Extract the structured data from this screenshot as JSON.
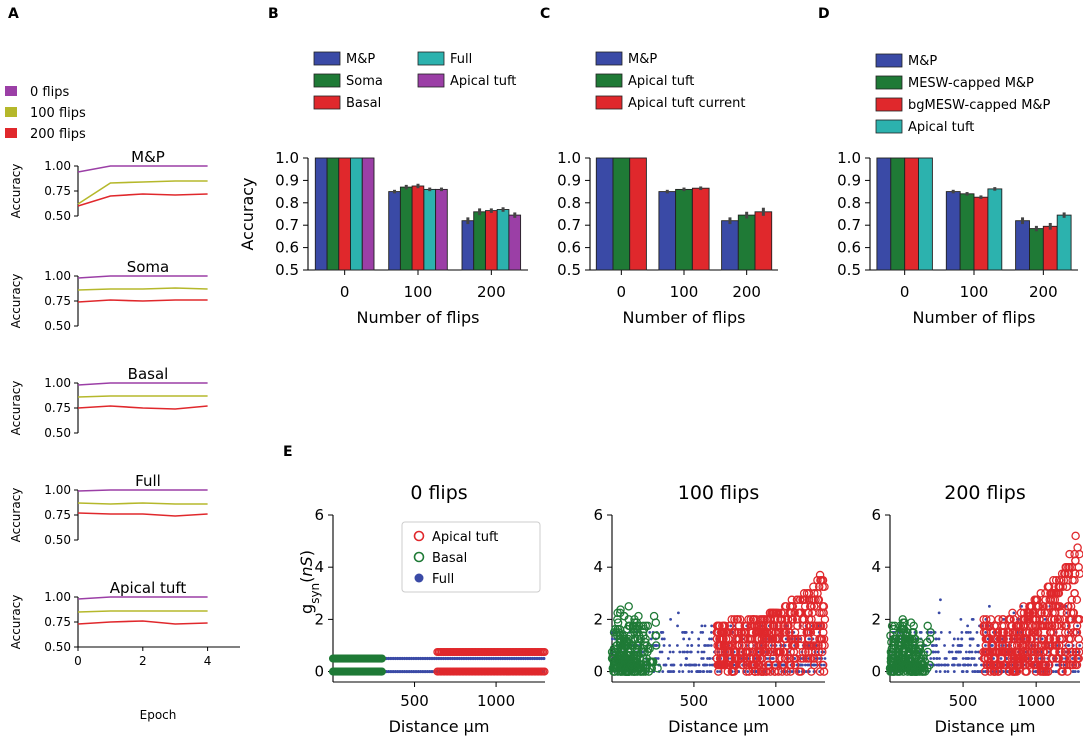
{
  "panel_labels": [
    "A",
    "B",
    "C",
    "D",
    "E"
  ],
  "colors": {
    "mp": "#3a4aa6",
    "soma": "#1f7a36",
    "basal": "#e0282c",
    "full": "#2cb2ae",
    "apical": "#9b3fa6",
    "flips0": "#9b3fa6",
    "flips100": "#b5b82b",
    "flips200": "#e0282c"
  },
  "chart_data": [
    {
      "id": "A",
      "type": "line",
      "legend": [
        "0 flips",
        "100 flips",
        "200 flips"
      ],
      "xlabel": "Epoch",
      "ylabel": "Accuracy",
      "xticks": [
        0,
        2,
        4
      ],
      "yticks": [
        "0.50",
        "0.75",
        "1.00"
      ],
      "xlim": [
        0,
        5
      ],
      "ylim": [
        0.5,
        1.0
      ],
      "x": [
        0,
        1,
        2,
        3,
        4
      ],
      "subplots": [
        {
          "title": "M&P",
          "series": [
            {
              "name": "0 flips",
              "values": [
                0.94,
                1.0,
                1.0,
                1.0,
                1.0
              ]
            },
            {
              "name": "100 flips",
              "values": [
                0.62,
                0.83,
                0.84,
                0.85,
                0.85
              ]
            },
            {
              "name": "200 flips",
              "values": [
                0.6,
                0.7,
                0.72,
                0.71,
                0.72
              ]
            }
          ]
        },
        {
          "title": "Soma",
          "series": [
            {
              "name": "0 flips",
              "values": [
                0.98,
                1.0,
                1.0,
                1.0,
                1.0
              ]
            },
            {
              "name": "100 flips",
              "values": [
                0.86,
                0.87,
                0.87,
                0.88,
                0.87
              ]
            },
            {
              "name": "200 flips",
              "values": [
                0.74,
                0.76,
                0.75,
                0.76,
                0.76
              ]
            }
          ]
        },
        {
          "title": "Basal",
          "series": [
            {
              "name": "0 flips",
              "values": [
                0.98,
                1.0,
                1.0,
                1.0,
                1.0
              ]
            },
            {
              "name": "100 flips",
              "values": [
                0.86,
                0.87,
                0.87,
                0.87,
                0.87
              ]
            },
            {
              "name": "200 flips",
              "values": [
                0.75,
                0.77,
                0.75,
                0.74,
                0.77
              ]
            }
          ]
        },
        {
          "title": "Full",
          "series": [
            {
              "name": "0 flips",
              "values": [
                0.99,
                1.0,
                1.0,
                1.0,
                1.0
              ]
            },
            {
              "name": "100 flips",
              "values": [
                0.87,
                0.86,
                0.87,
                0.86,
                0.86
              ]
            },
            {
              "name": "200 flips",
              "values": [
                0.77,
                0.76,
                0.76,
                0.74,
                0.76
              ]
            }
          ]
        },
        {
          "title": "Apical tuft",
          "series": [
            {
              "name": "0 flips",
              "values": [
                0.98,
                1.0,
                1.0,
                1.0,
                1.0
              ]
            },
            {
              "name": "100 flips",
              "values": [
                0.85,
                0.86,
                0.86,
                0.86,
                0.86
              ]
            },
            {
              "name": "200 flips",
              "values": [
                0.73,
                0.75,
                0.76,
                0.73,
                0.74
              ]
            }
          ]
        }
      ]
    },
    {
      "id": "B",
      "type": "bar",
      "categories": [
        "0",
        "100",
        "200"
      ],
      "xlabel": "Number of flips",
      "ylabel": "Accuracy",
      "ylim": [
        0.5,
        1.0
      ],
      "yticks": [
        "0.5",
        "0.6",
        "0.7",
        "0.8",
        "0.9",
        "1.0"
      ],
      "legend_order": [
        "M&P",
        "Full",
        "Soma",
        "Apical tuft",
        "Basal"
      ],
      "series": [
        {
          "name": "M&P",
          "color": "#3a4aa6",
          "values": [
            1.0,
            0.85,
            0.72
          ],
          "err": [
            0,
            0.008,
            0.015
          ]
        },
        {
          "name": "Soma",
          "color": "#1f7a36",
          "values": [
            1.0,
            0.87,
            0.76
          ],
          "err": [
            0,
            0.01,
            0.015
          ]
        },
        {
          "name": "Basal",
          "color": "#e0282c",
          "values": [
            1.0,
            0.875,
            0.765
          ],
          "err": [
            0,
            0.01,
            0.01
          ]
        },
        {
          "name": "Full",
          "color": "#2cb2ae",
          "values": [
            1.0,
            0.86,
            0.77
          ],
          "err": [
            0,
            0.008,
            0.01
          ]
        },
        {
          "name": "Apical tuft",
          "color": "#9b3fa6",
          "values": [
            1.0,
            0.86,
            0.745
          ],
          "err": [
            0,
            0.008,
            0.012
          ]
        }
      ]
    },
    {
      "id": "C",
      "type": "bar",
      "categories": [
        "0",
        "100",
        "200"
      ],
      "xlabel": "Number of flips",
      "ylabel": "",
      "ylim": [
        0.5,
        1.0
      ],
      "yticks": [
        "0.5",
        "0.6",
        "0.7",
        "0.8",
        "0.9",
        "1.0"
      ],
      "legend_order": [
        "M&P",
        "Apical tuft",
        "Apical tuft current"
      ],
      "series": [
        {
          "name": "M&P",
          "color": "#3a4aa6",
          "values": [
            1.0,
            0.85,
            0.72
          ],
          "err": [
            0,
            0.008,
            0.015
          ]
        },
        {
          "name": "Apical tuft",
          "color": "#1f7a36",
          "values": [
            1.0,
            0.86,
            0.745
          ],
          "err": [
            0,
            0.008,
            0.015
          ]
        },
        {
          "name": "Apical tuft current",
          "color": "#e0282c",
          "values": [
            1.0,
            0.865,
            0.76
          ],
          "err": [
            0,
            0.008,
            0.018
          ]
        }
      ]
    },
    {
      "id": "D",
      "type": "bar",
      "categories": [
        "0",
        "100",
        "200"
      ],
      "xlabel": "Number of flips",
      "ylabel": "",
      "ylim": [
        0.5,
        1.0
      ],
      "yticks": [
        "0.5",
        "0.6",
        "0.7",
        "0.8",
        "0.9",
        "1.0"
      ],
      "legend_order": [
        "M&P",
        "MESW-capped M&P",
        "bgMESW-capped M&P",
        "Apical tuft"
      ],
      "series": [
        {
          "name": "M&P",
          "color": "#3a4aa6",
          "values": [
            1.0,
            0.85,
            0.72
          ],
          "err": [
            0,
            0.008,
            0.015
          ]
        },
        {
          "name": "MESW-capped M&P",
          "color": "#1f7a36",
          "values": [
            1.0,
            0.84,
            0.685
          ],
          "err": [
            0,
            0.008,
            0.012
          ]
        },
        {
          "name": "bgMESW-capped M&P",
          "color": "#e0282c",
          "values": [
            1.0,
            0.825,
            0.695
          ],
          "err": [
            0,
            0.008,
            0.015
          ]
        },
        {
          "name": "Apical tuft",
          "color": "#2cb2ae",
          "values": [
            1.0,
            0.862,
            0.745
          ],
          "err": [
            0,
            0.008,
            0.012
          ]
        }
      ]
    },
    {
      "id": "E",
      "type": "scatter",
      "xlabel": "Distance µm",
      "ylabel": "g_syn(nS)",
      "xlim": [
        0,
        1300
      ],
      "ylim": [
        -0.4,
        6
      ],
      "xticks": [
        "500",
        "1000"
      ],
      "yticks": [
        "0",
        "2",
        "4",
        "6"
      ],
      "legend": [
        "Apical tuft",
        "Basal",
        "Full"
      ],
      "panels": [
        {
          "title": "0 flips",
          "full_band_values": [
            0.0,
            0.5,
            0.75
          ],
          "basal_range": [
            0,
            300
          ],
          "basal_values": [
            0.0,
            0.5
          ],
          "apical_range": [
            640,
            1300
          ],
          "apical_values": [
            0.0,
            0.75
          ],
          "apical_max": 0.75,
          "basal_max": 0.5
        },
        {
          "title": "100 flips",
          "basal_range": [
            0,
            300
          ],
          "apical_range": [
            640,
            1300
          ],
          "apical_max": 3.7,
          "basal_max": 2.6,
          "full_max": 2.8
        },
        {
          "title": "200 flips",
          "basal_range": [
            0,
            300
          ],
          "apical_range": [
            640,
            1300
          ],
          "apical_max": 5.2,
          "basal_max": 2.2,
          "full_max": 3.5
        }
      ]
    }
  ]
}
